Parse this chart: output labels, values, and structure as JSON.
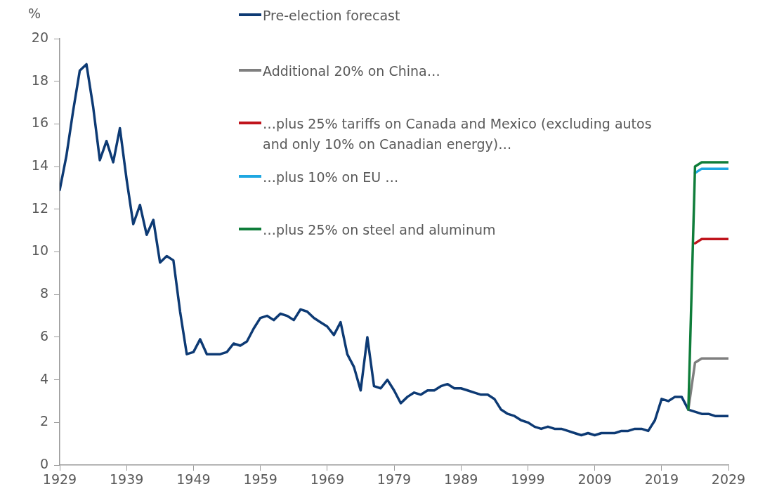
{
  "chart_data": {
    "type": "line",
    "ylabel": "%",
    "x": [
      1929,
      1930,
      1931,
      1932,
      1933,
      1934,
      1935,
      1936,
      1937,
      1938,
      1939,
      1940,
      1941,
      1942,
      1943,
      1944,
      1945,
      1946,
      1947,
      1948,
      1949,
      1950,
      1951,
      1952,
      1953,
      1954,
      1955,
      1956,
      1957,
      1958,
      1959,
      1960,
      1961,
      1962,
      1963,
      1964,
      1965,
      1966,
      1967,
      1968,
      1969,
      1970,
      1971,
      1972,
      1973,
      1974,
      1975,
      1976,
      1977,
      1978,
      1979,
      1980,
      1981,
      1982,
      1983,
      1984,
      1985,
      1986,
      1987,
      1988,
      1989,
      1990,
      1991,
      1992,
      1993,
      1994,
      1995,
      1996,
      1997,
      1998,
      1999,
      2000,
      2001,
      2002,
      2003,
      2004,
      2005,
      2006,
      2007,
      2008,
      2009,
      2010,
      2011,
      2012,
      2013,
      2014,
      2015,
      2016,
      2017,
      2018,
      2019,
      2020,
      2021,
      2022,
      2023,
      2024,
      2025,
      2026,
      2027,
      2028,
      2029
    ],
    "series": [
      {
        "name": "Pre-election forecast",
        "color": "#0d3a74",
        "values": [
          12.9,
          14.5,
          16.6,
          18.5,
          18.8,
          16.8,
          14.3,
          15.2,
          14.2,
          15.8,
          13.4,
          11.3,
          12.2,
          10.8,
          11.5,
          9.5,
          9.8,
          9.6,
          7.2,
          5.2,
          5.3,
          5.9,
          5.2,
          5.2,
          5.2,
          5.3,
          5.7,
          5.6,
          5.8,
          6.4,
          6.9,
          7.0,
          6.8,
          7.1,
          7.0,
          6.8,
          7.3,
          7.2,
          6.9,
          6.7,
          6.5,
          6.1,
          6.7,
          5.2,
          4.6,
          3.5,
          6.0,
          3.7,
          3.6,
          4.0,
          3.5,
          2.9,
          3.2,
          3.4,
          3.3,
          3.5,
          3.5,
          3.7,
          3.8,
          3.6,
          3.6,
          3.5,
          3.4,
          3.3,
          3.3,
          3.1,
          2.6,
          2.4,
          2.3,
          2.1,
          2.0,
          1.8,
          1.7,
          1.8,
          1.7,
          1.7,
          1.6,
          1.5,
          1.4,
          1.5,
          1.4,
          1.5,
          1.5,
          1.5,
          1.6,
          1.6,
          1.7,
          1.7,
          1.6,
          2.1,
          3.1,
          3.0,
          3.2,
          3.2,
          2.6,
          2.5,
          2.4,
          2.4,
          2.3,
          2.3,
          2.3
        ]
      },
      {
        "name": "Additional 20% on China…",
        "color": "#7f7f7f",
        "x": [
          2023,
          2024,
          2025,
          2026,
          2027,
          2028,
          2029
        ],
        "values": [
          2.6,
          4.8,
          5.0,
          5.0,
          5.0,
          5.0,
          5.0
        ]
      },
      {
        "name": "…plus 25% tariffs on Canada and Mexico (excluding autos and only 10% on Canadian energy)…",
        "color": "#c0141c",
        "x": [
          2024,
          2025,
          2026,
          2027,
          2028,
          2029
        ],
        "values": [
          10.4,
          10.6,
          10.6,
          10.6,
          10.6,
          10.6
        ]
      },
      {
        "name": "…plus 10% on EU …",
        "color": "#1ea7e1",
        "x": [
          2024,
          2025,
          2026,
          2027,
          2028,
          2029
        ],
        "values": [
          13.7,
          13.9,
          13.9,
          13.9,
          13.9,
          13.9
        ]
      },
      {
        "name": "…plus 25% on steel and aluminum",
        "color": "#0f7d3a",
        "x": [
          2023,
          2024,
          2025,
          2026,
          2027,
          2028,
          2029
        ],
        "values": [
          2.6,
          14.0,
          14.2,
          14.2,
          14.2,
          14.2,
          14.2
        ]
      }
    ],
    "xlim": [
      1929,
      2029
    ],
    "xticks": [
      1929,
      1939,
      1949,
      1959,
      1969,
      1979,
      1989,
      1999,
      2009,
      2019,
      2029
    ],
    "ylim": [
      0,
      20
    ],
    "yticks": [
      0,
      2,
      4,
      6,
      8,
      10,
      12,
      14,
      16,
      18,
      20
    ],
    "grid": false,
    "legend": "top",
    "marker": "none",
    "line_style": "solid"
  }
}
